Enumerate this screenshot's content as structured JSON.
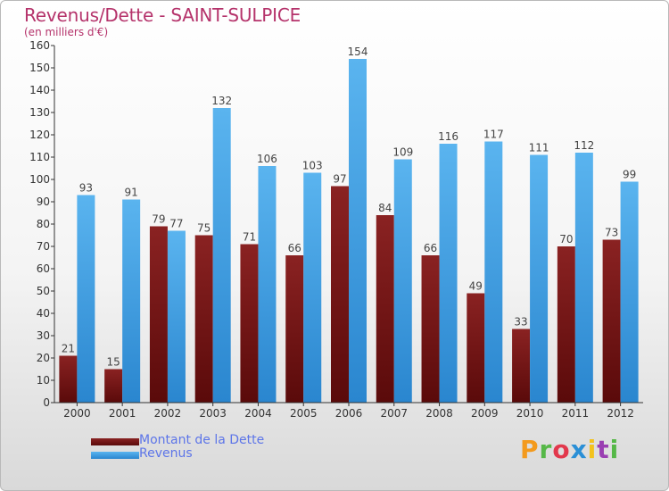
{
  "title": "Revenus/Dette - SAINT-SULPICE",
  "subtitle": "(en milliers d'€)",
  "logo_text": "Proxiti",
  "chart_data": {
    "type": "bar",
    "categories": [
      "2000",
      "2001",
      "2002",
      "2003",
      "2004",
      "2005",
      "2006",
      "2007",
      "2008",
      "2009",
      "2010",
      "2011",
      "2012"
    ],
    "series": [
      {
        "name": "Montant de la Dette",
        "color": "#7a1414",
        "values": [
          21,
          15,
          79,
          75,
          71,
          66,
          97,
          84,
          66,
          49,
          33,
          70,
          73
        ]
      },
      {
        "name": "Revenus",
        "color": "#3d9fe3",
        "values": [
          93,
          91,
          77,
          132,
          106,
          103,
          154,
          109,
          116,
          117,
          111,
          112,
          99
        ]
      }
    ],
    "ylim": [
      0,
      160
    ],
    "yticks": [
      0,
      10,
      20,
      30,
      40,
      50,
      60,
      70,
      80,
      90,
      100,
      110,
      120,
      130,
      140,
      150,
      160
    ],
    "grid": false,
    "legend_position": "bottom-left"
  }
}
